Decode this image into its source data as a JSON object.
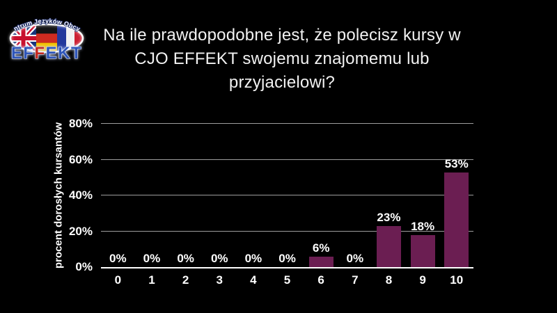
{
  "slide": {
    "background": "#000000"
  },
  "logo": {
    "tagline": "Centrum Języków Obcych",
    "brand_parts": [
      "EF",
      "F",
      "EKT"
    ],
    "brand_blue": "#2e55b8",
    "brand_red": "#c4281e"
  },
  "title": "Na ile prawdopodobne jest, że polecisz kursy w CJO EFFEKT swojemu znajomemu lub przyjacielowi?",
  "chart_data": {
    "type": "bar",
    "title": "",
    "categories": [
      "0",
      "1",
      "2",
      "3",
      "4",
      "5",
      "6",
      "7",
      "8",
      "9",
      "10"
    ],
    "values": [
      0,
      0,
      0,
      0,
      0,
      0,
      6,
      0,
      23,
      18,
      53
    ],
    "value_labels": [
      "0%",
      "0%",
      "0%",
      "0%",
      "0%",
      "0%",
      "6%",
      "0%",
      "23%",
      "18%",
      "53%"
    ],
    "xlabel": "",
    "ylabel": "procent dorosłych kursantów",
    "ylim": [
      0,
      80
    ],
    "yticks": [
      {
        "value": 0,
        "label": "0%"
      },
      {
        "value": 20,
        "label": "20%"
      },
      {
        "value": 40,
        "label": "40%"
      },
      {
        "value": 60,
        "label": "60%"
      },
      {
        "value": 80,
        "label": "80%"
      }
    ],
    "grid": "horizontal",
    "legend": false,
    "bar_color": "#6b1e52",
    "grid_color": "#9e9e9e",
    "axis_color": "#ffffff",
    "label_color": "#ffffff"
  }
}
